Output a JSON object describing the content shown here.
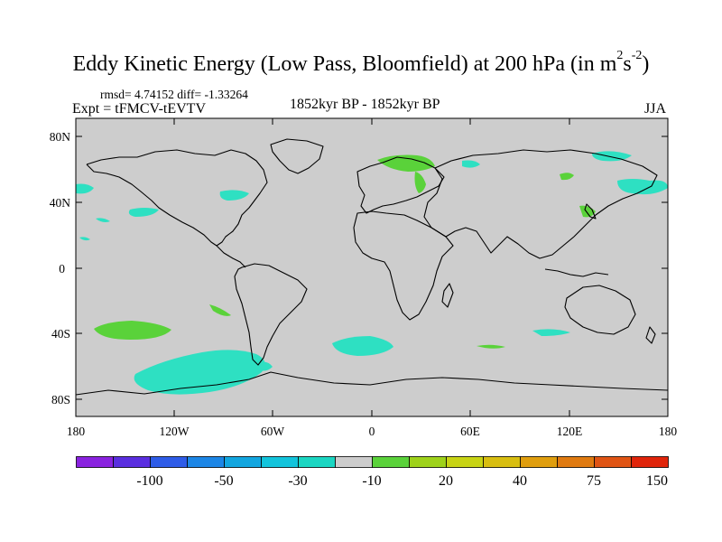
{
  "title": {
    "main": "Eddy Kinetic Energy (Low Pass, Bloomfield) at 200 hPa (in m",
    "sup1": "2",
    "mid": "s",
    "sup2": "-2",
    "end": ")"
  },
  "stats": "rmsd= 4.74152 diff= -1.33264",
  "expt": "Expt = tFMCV-tEVTV",
  "period": "1852kyr BP - 1852kyr BP",
  "season": "JJA",
  "lat_ticks": [
    "80N",
    "40N",
    "0",
    "40S",
    "80S"
  ],
  "lon_ticks": [
    "180",
    "120W",
    "60W",
    "0",
    "60E",
    "120E",
    "180"
  ],
  "colorbar": {
    "colors": [
      "#8a22e0",
      "#5a2ee0",
      "#2e5ce8",
      "#1c86e6",
      "#12a6e0",
      "#12c4dc",
      "#1ad6c2",
      "#cccccc",
      "#5ad23a",
      "#9ed21a",
      "#c8d414",
      "#d8be10",
      "#e09e0e",
      "#e07a10",
      "#e05414",
      "#e0240a"
    ],
    "labels": [
      "-100",
      "-50",
      "-30",
      "-10",
      "20",
      "40",
      "75",
      "150"
    ]
  },
  "map_colors": {
    "ocean": "#cdcdcd",
    "teal": "#2ee0c2",
    "green": "#5ad23a",
    "coast": "#000000"
  }
}
